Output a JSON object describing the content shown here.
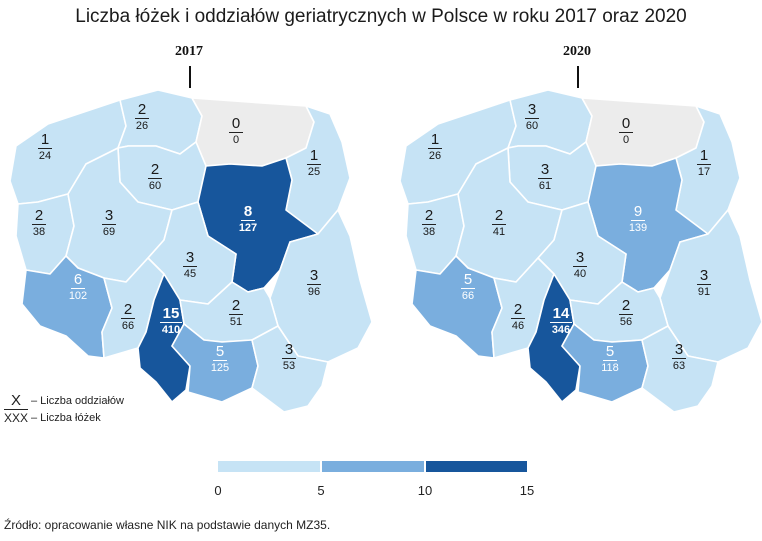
{
  "title": "Liczba łóżek i oddziałów geriatrycznych w Polsce w roku 2017 oraz 2020",
  "colors": {
    "empty": "#ececec",
    "light": "#c6e3f5",
    "medium": "#7aaede",
    "dark": "#17569c"
  },
  "maps": [
    {
      "year": "2017",
      "regions": {
        "zachodniopomorskie": {
          "wards": "1",
          "beds": "24",
          "tone": "light"
        },
        "pomorskie": {
          "wards": "2",
          "beds": "26",
          "tone": "light"
        },
        "warminsko_mazurskie": {
          "wards": "0",
          "beds": "0",
          "tone": "empty"
        },
        "podlaskie": {
          "wards": "1",
          "beds": "25",
          "tone": "light"
        },
        "kujawsko_pomorskie": {
          "wards": "2",
          "beds": "60",
          "tone": "light"
        },
        "lubuskie": {
          "wards": "2",
          "beds": "38",
          "tone": "light"
        },
        "wielkopolskie": {
          "wards": "3",
          "beds": "69",
          "tone": "light"
        },
        "mazowieckie": {
          "wards": "8",
          "beds": "127",
          "tone": "dark"
        },
        "lodzkie": {
          "wards": "3",
          "beds": "45",
          "tone": "light"
        },
        "lubelskie": {
          "wards": "3",
          "beds": "96",
          "tone": "light"
        },
        "dolnoslaskie": {
          "wards": "6",
          "beds": "102",
          "tone": "medium"
        },
        "opolskie": {
          "wards": "2",
          "beds": "66",
          "tone": "light"
        },
        "slaskie": {
          "wards": "15",
          "beds": "410",
          "tone": "dark"
        },
        "swietokrzyskie": {
          "wards": "2",
          "beds": "51",
          "tone": "light"
        },
        "malopolskie": {
          "wards": "5",
          "beds": "125",
          "tone": "medium"
        },
        "podkarpackie": {
          "wards": "3",
          "beds": "53",
          "tone": "light"
        }
      }
    },
    {
      "year": "2020",
      "regions": {
        "zachodniopomorskie": {
          "wards": "1",
          "beds": "26",
          "tone": "light"
        },
        "pomorskie": {
          "wards": "3",
          "beds": "60",
          "tone": "light"
        },
        "warminsko_mazurskie": {
          "wards": "0",
          "beds": "0",
          "tone": "empty"
        },
        "podlaskie": {
          "wards": "1",
          "beds": "17",
          "tone": "light"
        },
        "kujawsko_pomorskie": {
          "wards": "3",
          "beds": "61",
          "tone": "light"
        },
        "lubuskie": {
          "wards": "2",
          "beds": "38",
          "tone": "light"
        },
        "wielkopolskie": {
          "wards": "2",
          "beds": "41",
          "tone": "light"
        },
        "mazowieckie": {
          "wards": "9",
          "beds": "139",
          "tone": "medium"
        },
        "lodzkie": {
          "wards": "3",
          "beds": "40",
          "tone": "light"
        },
        "lubelskie": {
          "wards": "3",
          "beds": "91",
          "tone": "light"
        },
        "dolnoslaskie": {
          "wards": "5",
          "beds": "66",
          "tone": "medium"
        },
        "opolskie": {
          "wards": "2",
          "beds": "46",
          "tone": "light"
        },
        "slaskie": {
          "wards": "14",
          "beds": "346",
          "tone": "dark"
        },
        "swietokrzyskie": {
          "wards": "2",
          "beds": "56",
          "tone": "light"
        },
        "malopolskie": {
          "wards": "5",
          "beds": "118",
          "tone": "medium"
        },
        "podkarpackie": {
          "wards": "3",
          "beds": "63",
          "tone": "light"
        }
      }
    }
  ],
  "legend": {
    "wards_symbol": "X",
    "wards_label": "– Liczba oddziałów",
    "beds_symbol": "XXX",
    "beds_label": "– Liczba łóżek"
  },
  "scale": {
    "ticks": [
      "0",
      "5",
      "10",
      "15"
    ]
  },
  "source": "Źródło: opracowanie własne NIK na podstawie danych MZ35."
}
